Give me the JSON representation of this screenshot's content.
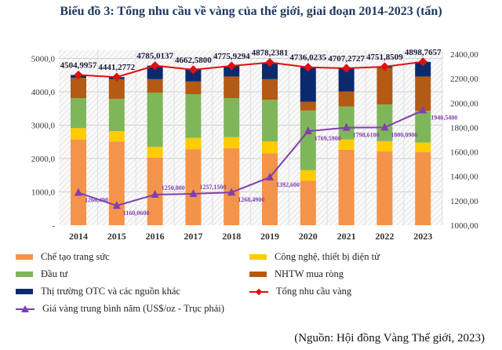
{
  "title": "Biểu đồ 3: Tổng nhu cầu về vàng của thế giới, giai đoạn 2014-2023 (tấn)",
  "source": "(Nguồn: Hội đồng Vàng Thế giới, 2023)",
  "chart_data": {
    "type": "bar",
    "stacked": true,
    "title": "Biểu đồ 3: Tổng nhu cầu về vàng của thế giới, giai đoạn 2014-2023 (tấn)",
    "categories": [
      "2014",
      "2015",
      "2016",
      "2017",
      "2018",
      "2019",
      "2020",
      "2021",
      "2022",
      "2023"
    ],
    "ylim": [
      0,
      5000
    ],
    "yticks": [
      "-",
      "1000,0",
      "2000,0",
      "3000,0",
      "4000,0",
      "5000,0"
    ],
    "y2lim": [
      1000,
      2400
    ],
    "y2ticks": [
      "1000,00",
      "1200,00",
      "1400,00",
      "1600,00",
      "1800,00",
      "2000,00",
      "2200,00",
      "2400,00"
    ],
    "grid": true,
    "legend_position": "bottom",
    "series": [
      {
        "name": "Chế tạo trang sức",
        "color": "#f4944a",
        "values": [
          2570,
          2510,
          2030,
          2280,
          2310,
          2160,
          1330,
          2260,
          2210,
          2190
        ]
      },
      {
        "name": "Công nghệ, thiết bị điện tử",
        "color": "#ffcc00",
        "values": [
          340,
          310,
          320,
          340,
          330,
          350,
          320,
          310,
          310,
          290
        ]
      },
      {
        "name": "Đầu tư",
        "color": "#7fb65a",
        "values": [
          900,
          970,
          1620,
          1310,
          1170,
          1250,
          1790,
          990,
          1100,
          950
        ]
      },
      {
        "name": "NHTW mua ròng",
        "color": "#b35a14",
        "values": [
          610,
          590,
          410,
          380,
          650,
          620,
          260,
          450,
          1100,
          1030
        ]
      },
      {
        "name": "Thị trường OTC và các nguồn khác",
        "color": "#0b2a6e",
        "values": [
          85,
          61,
          405,
          353,
          316,
          498,
          1036,
          697,
          32,
          439
        ]
      }
    ],
    "lines": [
      {
        "name": "Tổng nhu cầu vàng",
        "color": "#e01010",
        "axis": "left",
        "values": [
          4504.9957,
          4441.2772,
          4785.0137,
          4662.58,
          4775.9294,
          4878.2381,
          4736.0235,
          4707.2727,
          4751.8509,
          4898.7657
        ],
        "labels": [
          "4504,9957",
          "4441,2772",
          "4785,0137",
          "4662,5800",
          "4775,9294",
          "4878,2381",
          "4736,0235",
          "4707,2727",
          "4751,8509",
          "4898,7657"
        ]
      },
      {
        "name": "Giá vàng trung bình năm (US$/oz - Trục phải)",
        "color": "#7f3fb0",
        "axis": "right",
        "values": [
          1266.4,
          1160.06,
          1250.8,
          1257.15,
          1268.49,
          1392.6,
          1769.59,
          1798.61,
          1800.09,
          1940.54
        ],
        "labels": [
          "1266,400",
          "1160,0600",
          "1250,800",
          "1257,1500",
          "1268,4900",
          "1392,600",
          "1769,5900",
          "1798,6100",
          "1800,0900",
          "1940,5400"
        ]
      }
    ]
  }
}
